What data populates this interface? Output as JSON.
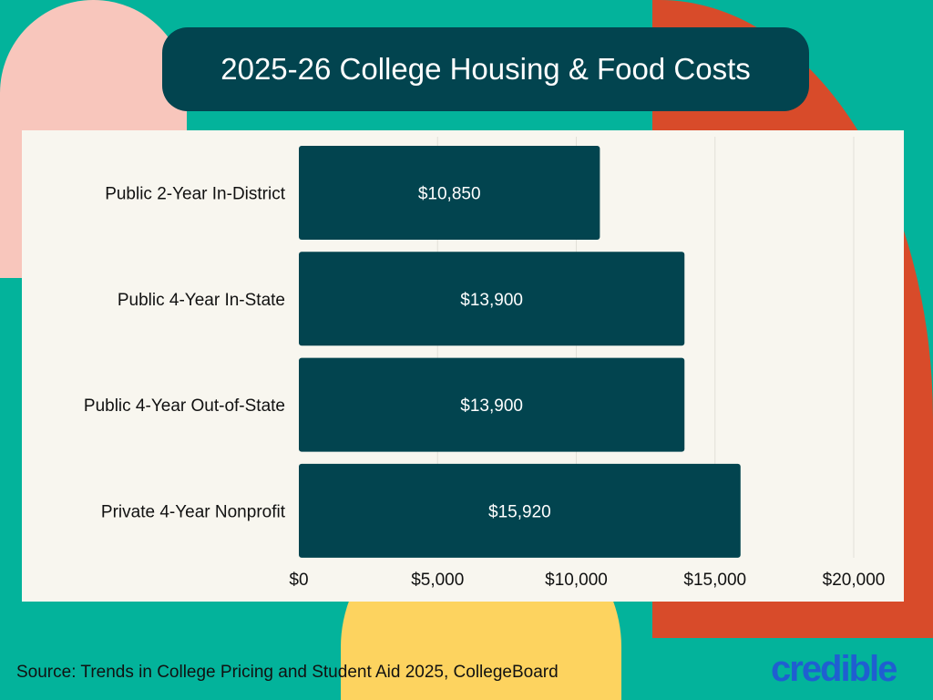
{
  "chart_data": {
    "type": "bar",
    "orientation": "horizontal",
    "title": "2025-26 College Housing & Food Costs",
    "categories": [
      "Public 2-Year In-District",
      "Public 4-Year In-State",
      "Public 4-Year Out-of-State",
      "Private 4-Year Nonprofit"
    ],
    "values": [
      10850,
      13900,
      13900,
      15920
    ],
    "data_labels": [
      "$10,850",
      "$13,900",
      "$13,900",
      "$15,920"
    ],
    "xlim": [
      0,
      20000
    ],
    "xticks": [
      0,
      5000,
      10000,
      15000,
      20000
    ],
    "xtick_labels": [
      "$0",
      "$5,000",
      "$10,000",
      "$15,000",
      "$20,000"
    ],
    "grid": true,
    "bar_color": "#02444F",
    "xlabel": "",
    "ylabel": ""
  },
  "footer": {
    "source": "Source: Trends in College Pricing and Student Aid 2025, CollegeBoard",
    "logo": "credible"
  },
  "colors": {
    "background": "#03B39B",
    "panel": "#F8F6EF",
    "pink": "#F8C6BC",
    "orange": "#D84B2A",
    "yellow": "#FDD35F",
    "logo": "#1F5FD1"
  }
}
